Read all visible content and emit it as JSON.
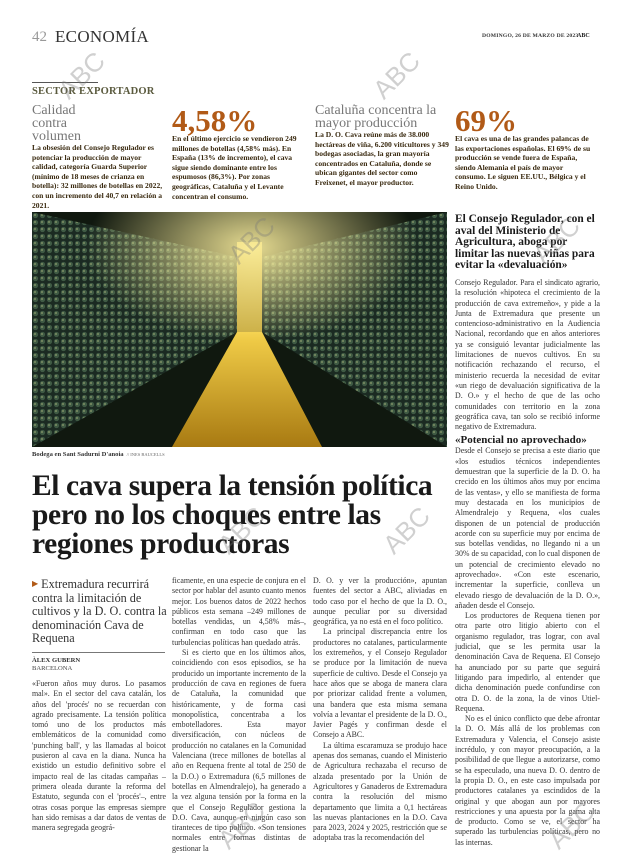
{
  "header": {
    "page_number": "42",
    "section": "ECONOMÍA",
    "date": "DOMINGO, 26 DE MARZO DE 2023",
    "logo": "ABC"
  },
  "watermark": "ABC",
  "facts": {
    "kicker": "SECTOR EXPORTADOR",
    "boxes": [
      {
        "title": "Calidad contra volumen",
        "text": "La obsesión del Consejo Regulador es potenciar la producción de mayor calidad, categoría Guarda Superior (mínimo de 18 meses de crianza en botella): 32 millones de botellas en 2022, con un incremento del 40,7 en relación a 2021."
      },
      {
        "figure": "4,58%",
        "text": "En el último ejercicio se vendieron 249 millones de botellas (4,58% más). En España (13% de incremento), el cava sigue siendo dominante entre los espumosos (86,3%). Por zonas geográficas, Cataluña y el Levante concentran el consumo."
      },
      {
        "title": "Cataluña concentra la mayor producción",
        "text": "La D. O. Cava reúne más de 38.000 hectáreas de viña, 6.200 viticultores y 349 bodegas asociadas, la gran mayoría concentrados en Cataluña, donde se ubican gigantes del sector como Freixenet, el mayor productor."
      },
      {
        "figure": "69%",
        "text": "El cava es una de las grandes palancas de las exportaciones españolas. El 69% de su producción se vende fuera de España, siendo Alemania el país de mayor consumo. Le siguen EE.UU., Bélgica y el Reino Unido."
      }
    ]
  },
  "photo": {
    "caption": "Bodega en Sant Sadurni D'anoia",
    "credit": "// INES BAUCELLS"
  },
  "article": {
    "headline": "El cava supera la tensión política pero no los choques entre las regiones productoras",
    "subhead": "Extremadura recurrirá contra la limitación de cultivos y la D. O. contra la denominación Cava de Requena",
    "author": "ÀLEX GUBERN",
    "location": "BARCELONA",
    "col1": [
      "«Fueron años muy duros. Lo pasamos mal». En el sector del cava catalán, los años del 'procés' no se recuerdan con agrado precisamente. La tensión política tomó uno de los productos más emblemáticos de la comunidad como 'punching ball', y las llamadas al boicot pusieron al cava en la diana. Nunca ha existido un estudio definitivo sobre el impacto real de las citadas campañas –primera oleada durante la reforma del Estatuto, segunda con el 'procés'–, entre otras cosas porque las empresas siempre han sido remisas a dar datos de ventas de manera segregada geográ-"
    ],
    "col2": [
      "ficamente, en una especie de conjura en el sector por hablar del asunto cuanto menos mejor. Los buenos datos de 2022 hechos públicos esta semana –249 millones de botellas vendidas, un 4,58% más–, confirman en todo caso que las turbulencias políticas han quedado atrás.",
      "Si es cierto que en los últimos años, coincidiendo con esos episodios, se ha producido un importante incremento de la producción de cava en regiones de fuera de Cataluña, la comunidad que históricamente, y de forma casi monopolística, concentraba a los embotelladores. Esta mayor diversificación, con núcleos de producción no catalanes en la Comunidad Valenciana (trece millones de botellas al año en Requena frente al total de 250 de la D.O.) o Extremadura (6,5 millones de botellas en Almendralejo), ha generado a la vez alguna tensión por la forma en la que el Consejo Regulador gestiona la D.O. Cava, aunque en ningún caso son tiranteces de tipo político. «Son tensiones normales entre formas distintas de gestionar la"
    ],
    "col3": [
      "D. O. y ver la producción», apuntan fuentes del sector a ABC, aliviadas en todo caso por el hecho de que la D. O., aunque peculiar por su diversidad geográfica, ya no está en el foco político.",
      "La principal discrepancia entre los productores no catalanes, particularmente los extremeños, y el Consejo Regulador se produce por la limitación de nueva superficie de cultivo. Desde el Consejo ya hace años que se aboga de manera clara por priorizar calidad frente a volumen, una bandera que esta misma semana volvía a levantar el presidente de la D. O., Javier Pagés y confirman desde el Consejo a ABC.",
      "La última escaramuza se produjo hace apenas dos semanas, cuando el Ministerio de Agricultura rechazaba el recurso de alzada presentado por la Unión de Agricultores y Ganaderos de Extremadura contra la resolución del mismo departamento que limita a 0,1 hectáreas las nuevas plantaciones en la D.O. Cava para 2023, 2024 y 2025, restricción que se adoptaba tras la recomendación del"
    ]
  },
  "sidebar": {
    "heading": "El Consejo Regulador, con el aval del Ministerio de Agricultura, aboga por limitar las nuevas viñas para evitar la «devaluación»",
    "paras1": [
      "Consejo Regulador. Para el sindicato agrario, la resolución «hipoteca el crecimiento de la producción de cava extremeño», y pide a la Junta de Extremadura que presente un contencioso-administrativo en la Audiencia Nacional, recordando que en años anteriores ya se consiguió levantar judicialmente las limitaciones de nuevos cultivos. En su notificación rechazando el recurso, el ministerio recuerda la necesidad de evitar «un riego de devaluación significativa de la D. O.» y el hecho de que de las ocho comunidades con territorio en la zona geográfica cava, tan solo se recibió informe negativo de Extremadura."
    ],
    "subheading": "«Potencial no aprovechado»",
    "paras2": [
      "Desde el Consejo se precisa a este diario que «los estudios técnicos independientes demuestran que la superficie de la D. O. ha crecido en los últimos años muy por encima de las ventas», y ello se manifiesta de forma muy destacada en los municipios de Almendralejo y Requena, «los cuales disponen de un potencial de producción acorde con su superficie muy por encima de sus botellas vendidas, no llegando ni a un 30% de su capacidad, con lo cual disponen de un potencial de crecimiento elevado no aprovechado». «Con este escenario, incrementar la superficie, conlleva un elevado riesgo de devaluación de la D. O.», añaden desde el Consejo.",
      "Los productores de Requena tienen por otra parte otro litigio abierto con el organismo regulador, tras lograr, con aval judicial, que se les permita usar la denominación Cava de Requena. El Consejo ha anunciado por su parte que seguirá litigando para impedirlo, al entender que dicha denominación puede confundirse con otra D. O. de la zona, la de vinos Utiel-Requena.",
      "No es el único conflicto que debe afrontar la D. O. Más allá de los problemas con Extremadura y Valencia, el Consejo asiste incrédulo, y con mayor preocupación, a la posibilidad de que llegue a autorizarse, como se ha especulado, una nueva D. O. dentro de la propia D. O., en este caso impulsada por productores catalanes ya escindidos de la original y que abogan aun por mayores restricciones y una apuesta por la gama alta de producto. Como se ve, el sector ha superado las turbulencias políticas, pero no las internas."
    ]
  },
  "colors": {
    "accent": "#b15a17",
    "kicker": "#5a5a3e"
  }
}
